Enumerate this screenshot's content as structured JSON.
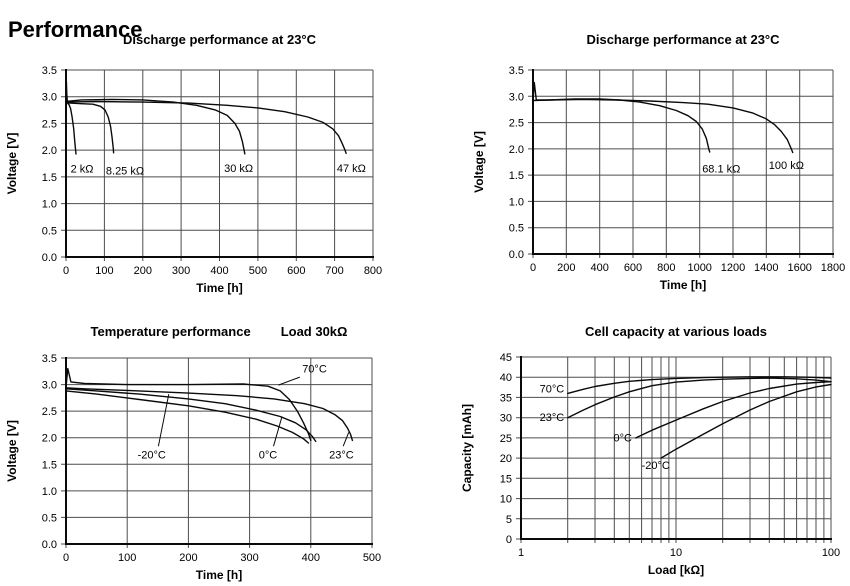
{
  "page_title": "Performance",
  "chart_data": [
    {
      "type": "line",
      "title": "Discharge performance at 23°C",
      "xlabel": "Time [h]",
      "ylabel": "Voltage [V]",
      "xscale": "linear",
      "xlim": [
        0,
        800
      ],
      "ylim": [
        0,
        3.5
      ],
      "xticks": [
        0,
        100,
        200,
        300,
        400,
        500,
        600,
        700,
        800
      ],
      "xticklabels": [
        "0",
        "100",
        "200",
        "300",
        "400",
        "500",
        "600",
        "700",
        "800"
      ],
      "yticks": [
        0,
        0.5,
        1.0,
        1.5,
        2.0,
        2.5,
        3.0,
        3.5
      ],
      "yticklabels": [
        "0.0",
        "0.5",
        "1.0",
        "1.5",
        "2.0",
        "2.5",
        "3.0",
        "3.5"
      ],
      "grid": true,
      "legend_position": "inline-labels",
      "series": [
        {
          "name": "2 kΩ",
          "points": [
            [
              0,
              2.92
            ],
            [
              1,
              3.28
            ],
            [
              2,
              3.05
            ],
            [
              4,
              2.88
            ],
            [
              8,
              2.85
            ],
            [
              12,
              2.78
            ],
            [
              16,
              2.62
            ],
            [
              20,
              2.4
            ],
            [
              23,
              2.15
            ],
            [
              25,
              2.0
            ],
            [
              26,
              1.93
            ]
          ]
        },
        {
          "name": "8.25 kΩ",
          "points": [
            [
              0,
              2.9
            ],
            [
              10,
              2.88
            ],
            [
              40,
              2.87
            ],
            [
              70,
              2.86
            ],
            [
              90,
              2.82
            ],
            [
              102,
              2.75
            ],
            [
              110,
              2.62
            ],
            [
              116,
              2.45
            ],
            [
              120,
              2.25
            ],
            [
              123,
              2.05
            ],
            [
              124,
              1.95
            ]
          ]
        },
        {
          "name": "30 kΩ",
          "points": [
            [
              0,
              2.91
            ],
            [
              40,
              2.94
            ],
            [
              120,
              2.95
            ],
            [
              200,
              2.94
            ],
            [
              280,
              2.9
            ],
            [
              340,
              2.84
            ],
            [
              390,
              2.75
            ],
            [
              420,
              2.65
            ],
            [
              440,
              2.5
            ],
            [
              452,
              2.35
            ],
            [
              460,
              2.15
            ],
            [
              464,
              2.0
            ],
            [
              466,
              1.93
            ]
          ]
        },
        {
          "name": "47 kΩ",
          "points": [
            [
              0,
              2.9
            ],
            [
              80,
              2.91
            ],
            [
              200,
              2.9
            ],
            [
              320,
              2.88
            ],
            [
              420,
              2.84
            ],
            [
              500,
              2.79
            ],
            [
              570,
              2.72
            ],
            [
              630,
              2.62
            ],
            [
              670,
              2.52
            ],
            [
              695,
              2.4
            ],
            [
              710,
              2.27
            ],
            [
              720,
              2.12
            ],
            [
              727,
              2.0
            ],
            [
              730,
              1.94
            ]
          ]
        }
      ],
      "labels": [
        {
          "text": "2 kΩ",
          "x": 12,
          "y": 1.66,
          "anchor": "start"
        },
        {
          "text": "8.25 kΩ",
          "x": 104,
          "y": 1.62,
          "anchor": "start"
        },
        {
          "text": "30 kΩ",
          "x": 412,
          "y": 1.67,
          "anchor": "start"
        },
        {
          "text": "47 kΩ",
          "x": 706,
          "y": 1.67,
          "anchor": "start"
        }
      ]
    },
    {
      "type": "line",
      "title": "Discharge performance at 23°C",
      "xlabel": "Time [h]",
      "ylabel": "Voltage [V]",
      "xscale": "linear",
      "xlim": [
        0,
        1800
      ],
      "ylim": [
        0,
        3.5
      ],
      "xticks": [
        0,
        200,
        400,
        600,
        800,
        1000,
        1200,
        1400,
        1600,
        1800
      ],
      "xticklabels": [
        "0",
        "200",
        "400",
        "600",
        "800",
        "1000",
        "1200",
        "1400",
        "1600",
        "1800"
      ],
      "yticks": [
        0,
        0.5,
        1.0,
        1.5,
        2.0,
        2.5,
        3.0,
        3.5
      ],
      "yticklabels": [
        "0.0",
        "0.5",
        "1.0",
        "1.5",
        "2.0",
        "2.5",
        "3.0",
        "3.5"
      ],
      "grid": true,
      "legend_position": "inline-labels",
      "series": [
        {
          "name": "68.1 kΩ",
          "points": [
            [
              0,
              2.9
            ],
            [
              8,
              3.26
            ],
            [
              20,
              2.93
            ],
            [
              100,
              2.93
            ],
            [
              250,
              2.95
            ],
            [
              400,
              2.95
            ],
            [
              520,
              2.93
            ],
            [
              640,
              2.89
            ],
            [
              760,
              2.82
            ],
            [
              860,
              2.73
            ],
            [
              930,
              2.63
            ],
            [
              980,
              2.52
            ],
            [
              1015,
              2.38
            ],
            [
              1040,
              2.2
            ],
            [
              1055,
              2.0
            ],
            [
              1060,
              1.94
            ]
          ]
        },
        {
          "name": "100 kΩ",
          "points": [
            [
              0,
              2.92
            ],
            [
              100,
              2.93
            ],
            [
              300,
              2.94
            ],
            [
              500,
              2.93
            ],
            [
              700,
              2.91
            ],
            [
              900,
              2.88
            ],
            [
              1050,
              2.85
            ],
            [
              1200,
              2.78
            ],
            [
              1320,
              2.68
            ],
            [
              1400,
              2.57
            ],
            [
              1450,
              2.46
            ],
            [
              1490,
              2.33
            ],
            [
              1525,
              2.18
            ],
            [
              1550,
              2.0
            ],
            [
              1558,
              1.93
            ]
          ]
        }
      ],
      "labels": [
        {
          "text": "68.1 kΩ",
          "x": 1015,
          "y": 1.63,
          "anchor": "start"
        },
        {
          "text": "100 kΩ",
          "x": 1415,
          "y": 1.69,
          "anchor": "start"
        }
      ]
    },
    {
      "type": "line",
      "title": "Temperature performance",
      "title2": "Load 30kΩ",
      "xlabel": "Time [h]",
      "ylabel": "Voltage [V]",
      "xscale": "linear",
      "xlim": [
        0,
        500
      ],
      "ylim": [
        0,
        3.5
      ],
      "xticks": [
        0,
        100,
        200,
        300,
        400,
        500
      ],
      "xticklabels": [
        "0",
        "100",
        "200",
        "300",
        "400",
        "500"
      ],
      "yticks": [
        0,
        0.5,
        1.0,
        1.5,
        2.0,
        2.5,
        3.0,
        3.5
      ],
      "yticklabels": [
        "0.0",
        "0.5",
        "1.0",
        "1.5",
        "2.0",
        "2.5",
        "3.0",
        "3.5"
      ],
      "grid": true,
      "legend_position": "inline-labels",
      "series": [
        {
          "name": "70°C",
          "points": [
            [
              0,
              2.95
            ],
            [
              3,
              3.3
            ],
            [
              8,
              3.05
            ],
            [
              30,
              3.02
            ],
            [
              100,
              3.0
            ],
            [
              200,
              3.0
            ],
            [
              290,
              3.01
            ],
            [
              330,
              2.97
            ],
            [
              350,
              2.88
            ],
            [
              365,
              2.72
            ],
            [
              378,
              2.5
            ],
            [
              388,
              2.28
            ],
            [
              396,
              2.08
            ],
            [
              400,
              1.95
            ]
          ]
        },
        {
          "name": "23°C",
          "points": [
            [
              0,
              2.94
            ],
            [
              30,
              2.92
            ],
            [
              100,
              2.89
            ],
            [
              200,
              2.84
            ],
            [
              280,
              2.79
            ],
            [
              340,
              2.73
            ],
            [
              390,
              2.64
            ],
            [
              420,
              2.55
            ],
            [
              440,
              2.43
            ],
            [
              452,
              2.32
            ],
            [
              460,
              2.18
            ],
            [
              465,
              2.06
            ],
            [
              468,
              1.95
            ]
          ]
        },
        {
          "name": "0°C",
          "points": [
            [
              0,
              2.92
            ],
            [
              50,
              2.88
            ],
            [
              120,
              2.82
            ],
            [
              200,
              2.73
            ],
            [
              260,
              2.64
            ],
            [
              310,
              2.52
            ],
            [
              350,
              2.4
            ],
            [
              375,
              2.28
            ],
            [
              392,
              2.15
            ],
            [
              403,
              2.02
            ],
            [
              408,
              1.93
            ]
          ]
        },
        {
          "name": "-20°C",
          "points": [
            [
              0,
              2.88
            ],
            [
              50,
              2.82
            ],
            [
              120,
              2.72
            ],
            [
              200,
              2.6
            ],
            [
              260,
              2.48
            ],
            [
              310,
              2.35
            ],
            [
              345,
              2.22
            ],
            [
              370,
              2.1
            ],
            [
              388,
              1.98
            ],
            [
              396,
              1.9
            ]
          ]
        }
      ],
      "labels": [
        {
          "text": "70°C",
          "x": 386,
          "y": 3.3,
          "anchor": "start",
          "leader": [
            382,
            3.14,
            347,
            2.99
          ]
        },
        {
          "text": "-20°C",
          "x": 140,
          "y": 1.68,
          "anchor": "middle",
          "leader": [
            151,
            1.84,
            168,
            2.82
          ]
        },
        {
          "text": "0°C",
          "x": 330,
          "y": 1.68,
          "anchor": "middle",
          "leader": [
            339,
            1.84,
            353,
            2.4
          ]
        },
        {
          "text": "23°C",
          "x": 450,
          "y": 1.68,
          "anchor": "middle",
          "leader": [
            453,
            1.84,
            462,
            2.1
          ]
        }
      ]
    },
    {
      "type": "line",
      "title": "Cell capacity at various loads",
      "xlabel": "Load [kΩ]",
      "ylabel": "Capacity [mAh]",
      "xscale": "log",
      "xlim": [
        1,
        100
      ],
      "ylim": [
        0,
        45
      ],
      "xticks": [
        1,
        10,
        100
      ],
      "xticklabels": [
        "1",
        "10",
        "100"
      ],
      "yticks": [
        0,
        5,
        10,
        15,
        20,
        25,
        30,
        35,
        40,
        45
      ],
      "yticklabels": [
        "0",
        "5",
        "10",
        "15",
        "20",
        "25",
        "30",
        "35",
        "40",
        "45"
      ],
      "grid": true,
      "legend_position": "inline-labels",
      "series": [
        {
          "name": "70°C",
          "points": [
            [
              2,
              36
            ],
            [
              2.5,
              37.0
            ],
            [
              3,
              37.7
            ],
            [
              4,
              38.5
            ],
            [
              5,
              39.0
            ],
            [
              7,
              39.4
            ],
            [
              10,
              39.7
            ],
            [
              15,
              39.9
            ],
            [
              20,
              40.0
            ],
            [
              30,
              40.1
            ],
            [
              50,
              40.1
            ],
            [
              70,
              40.0
            ],
            [
              100,
              39.8
            ]
          ]
        },
        {
          "name": "23°C",
          "points": [
            [
              2,
              30
            ],
            [
              2.5,
              31.8
            ],
            [
              3,
              33.2
            ],
            [
              4,
              35.1
            ],
            [
              5,
              36.4
            ],
            [
              7,
              37.9
            ],
            [
              10,
              38.8
            ],
            [
              15,
              39.3
            ],
            [
              20,
              39.5
            ],
            [
              30,
              39.7
            ],
            [
              40,
              39.8
            ],
            [
              60,
              39.6
            ],
            [
              80,
              39.3
            ],
            [
              100,
              38.9
            ]
          ]
        },
        {
          "name": "0°C",
          "points": [
            [
              5.5,
              25
            ],
            [
              7,
              26.9
            ],
            [
              10,
              29.4
            ],
            [
              15,
              32.2
            ],
            [
              20,
              34.0
            ],
            [
              30,
              36.1
            ],
            [
              40,
              37.2
            ],
            [
              60,
              38.3
            ],
            [
              80,
              38.7
            ],
            [
              100,
              38.9
            ]
          ]
        },
        {
          "name": "-20°C",
          "points": [
            [
              8,
              20
            ],
            [
              10,
              22.2
            ],
            [
              15,
              25.9
            ],
            [
              20,
              28.5
            ],
            [
              30,
              31.9
            ],
            [
              40,
              34.0
            ],
            [
              60,
              36.4
            ],
            [
              80,
              37.6
            ],
            [
              100,
              38.2
            ]
          ]
        }
      ],
      "labels": [
        {
          "text": "70°C",
          "x": 1.9,
          "y": 37.2,
          "anchor": "end"
        },
        {
          "text": "23°C",
          "x": 1.9,
          "y": 30.2,
          "anchor": "end"
        },
        {
          "text": "0°C",
          "x": 5.2,
          "y": 25.1,
          "anchor": "end"
        },
        {
          "text": "-20°C",
          "x": 7.4,
          "y": 18.3,
          "anchor": "middle"
        }
      ]
    }
  ]
}
